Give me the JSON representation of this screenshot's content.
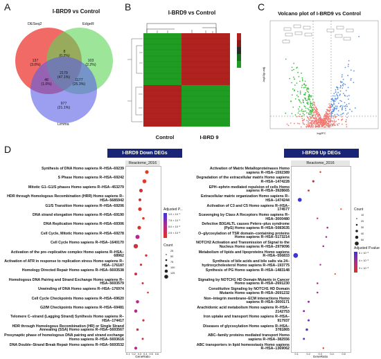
{
  "panelA": {
    "label": "A",
    "title": "I-BRD9 vs Control",
    "sets": [
      "DESeq2",
      "EdgeR",
      "Limma"
    ],
    "regions": [
      {
        "count": "137",
        "pct": "(3.0%)"
      },
      {
        "count": "8",
        "pct": "(0.2%)"
      },
      {
        "count": "103",
        "pct": "(2.2%)"
      },
      {
        "count": "2179",
        "pct": "(47.1%)"
      },
      {
        "count": "48",
        "pct": "(1.0%)"
      },
      {
        "count": "1177",
        "pct": "(25.3%)"
      },
      {
        "count": "977",
        "pct": "(21.1%)"
      }
    ],
    "colors": {
      "deseq": "#f0504a",
      "edger": "#5bd655",
      "limma": "#5a5ee6"
    }
  },
  "panelB": {
    "label": "B",
    "title": "I-BRD9 vs Control",
    "x_labels": [
      "Control",
      "I-BRD 9"
    ]
  },
  "panelC": {
    "label": "C",
    "title": "Volcano plot of I-BRD9 vs Control",
    "xlabel": "log2FC",
    "ylabel": "-log10(p.adj)"
  },
  "panelD": {
    "label": "D",
    "down": {
      "title": "I-BRD9 Down DEGs",
      "facet": "Reactome_2016",
      "xlabel": "GeneRatio",
      "xticks": [
        "0.1",
        "0.2",
        "0.3",
        "0.4",
        "0.5",
        "0.6"
      ],
      "legend_padj_title": "Adjusted P...",
      "legend_padj": [
        "1.0 × 10⁻¹",
        "7.5 × 10⁻²",
        "5.0 × 10⁻²",
        "2.5 × 10⁻²"
      ],
      "legend_count_title": "Count",
      "legend_count": [
        "25",
        "50",
        "75",
        "100",
        "125"
      ],
      "terms": [
        "Synthesis of DNA Homo sapiens R–HSA–69239",
        "S Phase Homo sapiens R–HSA–69242",
        "Mitotic G1–G1/S phases Homo sapiens R–HSA–453279",
        "HDR through Homologous Recombination (HRR) Homo sapiens R–HSA–5685942",
        "G1/S Transition Homo sapiens R–HSA–69206",
        "DNA strand elongation Homo sapiens R–HSA–69190",
        "DNA Replication Homo sapiens R–HSA–69306",
        "Cell Cycle, Mitotic Homo sapiens R–HSA–69278",
        "Cell Cycle Homo sapiens R–HSA–1640170",
        "Activation of the pre–replicative complex Homo sapiens R–HSA–68962",
        "Activation of ATR in response to replication stress Homo sapiens R–HSA–176187",
        "Homology Directed Repair Homo sapiens R–HSA–5693538",
        "Homologous DNA Pairing and Strand Exchange Homo sapiens R–HSA–5693579",
        "Unwinding of DNA Homo sapiens R–HSA–176974",
        "Cell Cycle Checkpoints Homo sapiens R–HSA–69620",
        "G2/M Checkpoints Homo sapiens R–HSA–69481",
        "Telomere C–strand (Lagging Strand) Synthesis Homo sapiens R–HSA–174417",
        "HDR through Homologous Recombination (HR) or Single Strand Annealing (SSA) Homo sapiens R–HSA–5693567",
        "Presynaptic phase of homologous DNA pairing and strand exchange Homo sapiens R–HSA–5693616",
        "DNA Double–Strand Break Repair Homo sapiens R–HSA–5693532"
      ]
    },
    "up": {
      "title": "I-BRD9 Up DEGs",
      "facet": "Reactome_2016",
      "xlabel": "GeneRatio",
      "xticks": [
        "0.1",
        "0.2",
        "0.3",
        "0.4",
        "0.5"
      ],
      "legend_count_title": "Count",
      "legend_count": [
        "10",
        "20",
        "30",
        "40",
        "50"
      ],
      "legend_padj_title": "Adjusted P.value",
      "legend_padj": [
        "6 × 10⁻³",
        "4 × 10⁻³",
        "3 × 10⁻³"
      ],
      "terms": [
        "Activation of Matrix Metalloproteinases Homo sapiens R–HSA–1592389",
        "Degradation of the extracellular matrix Homo sapiens R–HSA–1474228",
        "EPH–ephrin mediated repulsion of cells Homo sapiens R–HSA–3928665",
        "Extracellular matrix organization Homo sapiens R–HSA–1474244",
        "Activation of C3 and C5 Homo sapiens R–HSA–174577",
        "Scavenging by Class A Receptors Homo sapiens R–HSA–3000480",
        "Defective B3GALTL causes Peters–plus syndrome (PpS) Homo sapiens R–HSA–5083635",
        "O–glycosylation of TSR domain–containing proteins Homo sapiens R–HSA–5173214",
        "NOTCH2 Activation and Transmission of Signal to the Nucleus Homo sapiens R–HSA–2979096",
        "Metabolism of lipids and lipoproteins Homo sapiens R–HSA–556833",
        "Synthesis of bile acids and bile salts via 24–hydroxycholesterol Homo sapiens R–HSA–193775",
        "Synthesis of PG Homo sapiens R–HSA–1483148",
        "Signaling by NOTCH1 HD Domain Mutants in Cancer Homo sapiens R–HSA–2691230",
        "Constitutive Signaling by NOTCH1 HD Domain Mutants Homo sapiens R–HSA–2691232",
        "Non–integrin membrane–ECM interactions Homo sapiens R–HSA–3000171",
        "Arachidonic acid metabolism Homo sapiens R–HSA–2142753",
        "Iron uptake and transport Homo sapiens R–HSA–917937",
        "Diseases of glycosylation Homo sapiens R–HSA–3781865",
        "ABC–family proteins mediated transport Homo sapiens R–HSA–382556",
        "ABC transporters in lipid homeostasis Homo sapiens R–HSA–1369062"
      ]
    }
  }
}
